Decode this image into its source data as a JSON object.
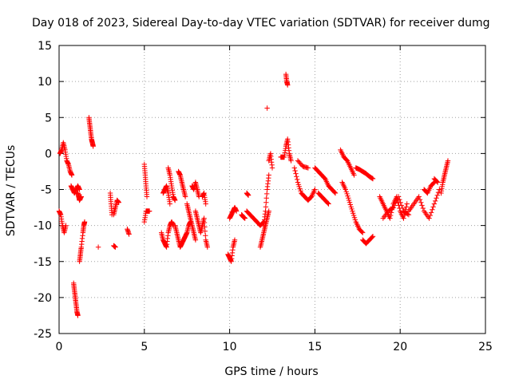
{
  "chart_data": {
    "type": "scatter",
    "title": "Day 018 of 2023, Sidereal Day-to-day VTEC variation (SDTVAR) for receiver dumg",
    "xlabel": "GPS time / hours",
    "ylabel": "SDTVAR / TECUs",
    "xlim": [
      0,
      25
    ],
    "ylim": [
      -25,
      15
    ],
    "xticks": [
      0,
      5,
      10,
      15,
      20,
      25
    ],
    "yticks": [
      15,
      10,
      5,
      0,
      -5,
      -10,
      -15,
      -20,
      -25
    ],
    "grid": true,
    "marker": "+",
    "color": "#ff0000",
    "segments": [
      {
        "x": [
          0.0,
          0.1,
          0.2,
          0.3,
          0.4
        ],
        "y": [
          -8,
          -8.5,
          -10,
          -11,
          -10
        ]
      },
      {
        "x": [
          0.05,
          0.15,
          0.25,
          0.35,
          0.45,
          0.55,
          0.65,
          0.75
        ],
        "y": [
          0,
          0.5,
          1.5,
          0.5,
          -1,
          -1.5,
          -2.5,
          -3
        ]
      },
      {
        "x": [
          0.7,
          0.8,
          0.9,
          1.0,
          1.1,
          1.2
        ],
        "y": [
          -4.5,
          -5,
          -5.5,
          -5,
          -4.5,
          -5
        ]
      },
      {
        "x": [
          0.85,
          0.9,
          0.95,
          1.0,
          1.05,
          1.1
        ],
        "y": [
          -18,
          -19,
          -20,
          -21,
          -22,
          -22.5
        ]
      },
      {
        "x": [
          1.1,
          1.15,
          1.2,
          1.3
        ],
        "y": [
          -5.5,
          -6,
          -6.5,
          -6
        ]
      },
      {
        "x": [
          1.2,
          1.25,
          1.3,
          1.4,
          1.45,
          1.5
        ],
        "y": [
          -15,
          -14,
          -13,
          -11,
          -10,
          -9.5
        ]
      },
      {
        "x": [
          1.75,
          1.8,
          1.85,
          1.9,
          1.95,
          2.0
        ],
        "y": [
          5,
          4,
          3,
          2,
          1.5,
          1
        ]
      },
      {
        "x": [
          2.3
        ],
        "y": [
          -13
        ]
      },
      {
        "x": [
          3.0,
          3.05,
          3.1
        ],
        "y": [
          -5.5,
          -7,
          -8.5
        ]
      },
      {
        "x": [
          3.2,
          3.3
        ],
        "y": [
          -12.8,
          -13
        ]
      },
      {
        "x": [
          3.2,
          3.3,
          3.4,
          3.5
        ],
        "y": [
          -8.5,
          -7.5,
          -6.5,
          -6.8
        ]
      },
      {
        "x": [
          4.0,
          4.1
        ],
        "y": [
          -10.5,
          -11.2
        ]
      },
      {
        "x": [
          5.0,
          5.05,
          5.1,
          5.15
        ],
        "y": [
          -1.5,
          -3,
          -4.5,
          -6
        ]
      },
      {
        "x": [
          5.0,
          5.1,
          5.2,
          5.3
        ],
        "y": [
          -9.5,
          -8,
          -8,
          -8
        ]
      },
      {
        "x": [
          6.0,
          6.1,
          6.2,
          6.3,
          6.4,
          6.5,
          6.6,
          6.7
        ],
        "y": [
          -11,
          -12,
          -12.5,
          -13,
          -11,
          -10,
          -9.5,
          -10
        ]
      },
      {
        "x": [
          6.1,
          6.2,
          6.3,
          6.4,
          6.5
        ],
        "y": [
          -5.5,
          -5,
          -4.5,
          -5.5,
          -7
        ]
      },
      {
        "x": [
          6.4,
          6.5,
          6.6,
          6.7,
          6.8
        ],
        "y": [
          -2,
          -3,
          -4.5,
          -6,
          -6.5
        ]
      },
      {
        "x": [
          6.8,
          6.9,
          7.0,
          7.1,
          7.2,
          7.3,
          7.4,
          7.5,
          7.6,
          7.7
        ],
        "y": [
          -10,
          -11,
          -12,
          -13,
          -12.5,
          -12,
          -11.5,
          -11,
          -10,
          -9.5
        ]
      },
      {
        "x": [
          7.0,
          7.1,
          7.2,
          7.3,
          7.4
        ],
        "y": [
          -2.5,
          -3,
          -4,
          -5,
          -6
        ]
      },
      {
        "x": [
          7.5,
          7.6,
          7.7,
          7.8,
          7.9,
          8.0
        ],
        "y": [
          -7,
          -8,
          -9,
          -10,
          -11,
          -12
        ]
      },
      {
        "x": [
          7.8,
          7.9,
          8.0,
          8.1,
          8.2
        ],
        "y": [
          -4.5,
          -5,
          -4,
          -5,
          -6
        ]
      },
      {
        "x": [
          8.0,
          8.1,
          8.2,
          8.3,
          8.4,
          8.5,
          8.6,
          8.7
        ],
        "y": [
          -8,
          -9,
          -10,
          -11,
          -10,
          -9,
          -12,
          -13
        ]
      },
      {
        "x": [
          8.4,
          8.5,
          8.6
        ],
        "y": [
          -6,
          -5.5,
          -7
        ]
      },
      {
        "x": [
          9.9,
          10.0,
          10.1,
          10.2,
          10.3
        ],
        "y": [
          -14,
          -14.5,
          -15,
          -13,
          -12
        ]
      },
      {
        "x": [
          10.0,
          10.1,
          10.2,
          10.3,
          10.4
        ],
        "y": [
          -9,
          -8.5,
          -8,
          -7.5,
          -8
        ]
      },
      {
        "x": [
          10.7,
          10.8,
          10.9
        ],
        "y": [
          -8.5,
          -8.8,
          -9
        ]
      },
      {
        "x": [
          11.0,
          11.1
        ],
        "y": [
          -5.5,
          -5.8
        ]
      },
      {
        "x": [
          11.0,
          11.2,
          11.4,
          11.6,
          11.8,
          12.0
        ],
        "y": [
          -8,
          -8.5,
          -9,
          -9.5,
          -10,
          -9.5
        ]
      },
      {
        "x": [
          11.8,
          11.9,
          12.0,
          12.1,
          12.2,
          12.3
        ],
        "y": [
          -13,
          -12,
          -11,
          -10,
          -9,
          -8
        ]
      },
      {
        "x": [
          12.0,
          12.1,
          12.2,
          12.3
        ],
        "y": [
          -10,
          -8,
          -5,
          -3
        ]
      },
      {
        "x": [
          12.3,
          12.4,
          12.5
        ],
        "y": [
          -1,
          0,
          -2
        ]
      },
      {
        "x": [
          12.2
        ],
        "y": [
          6.3
        ]
      },
      {
        "x": [
          13.0,
          13.1,
          13.2,
          13.3,
          13.4,
          13.5,
          13.6
        ],
        "y": [
          -0.5,
          -0.5,
          -0.5,
          1,
          2,
          0,
          -1
        ]
      },
      {
        "x": [
          13.3,
          13.35,
          13.4
        ],
        "y": [
          11,
          10,
          9.5
        ]
      },
      {
        "x": [
          13.8,
          14.0,
          14.2,
          14.4,
          14.6,
          14.8,
          15.0
        ],
        "y": [
          -2,
          -4,
          -5.5,
          -6,
          -6.5,
          -6,
          -5
        ]
      },
      {
        "x": [
          14.0,
          14.3,
          14.6
        ],
        "y": [
          -1,
          -1.8,
          -2
        ]
      },
      {
        "x": [
          15.0,
          15.2,
          15.4,
          15.6,
          15.8,
          16.0,
          16.2
        ],
        "y": [
          -2,
          -2.5,
          -3,
          -3.5,
          -4.5,
          -5,
          -5.5
        ]
      },
      {
        "x": [
          15.2,
          15.4,
          15.6,
          15.8
        ],
        "y": [
          -5.5,
          -6,
          -6.5,
          -7
        ]
      },
      {
        "x": [
          16.5,
          16.7,
          16.9,
          17.1,
          17.3
        ],
        "y": [
          0.5,
          -0.5,
          -1,
          -2,
          -3
        ]
      },
      {
        "x": [
          16.6,
          16.8,
          17.0,
          17.2,
          17.4,
          17.6,
          17.8
        ],
        "y": [
          -4,
          -5,
          -6.5,
          -8,
          -9.5,
          -10.5,
          -11
        ]
      },
      {
        "x": [
          17.4,
          17.6,
          17.8,
          18.0,
          18.2,
          18.4
        ],
        "y": [
          -2,
          -2.2,
          -2.5,
          -2.8,
          -3.2,
          -3.5
        ]
      },
      {
        "x": [
          17.8,
          18.0,
          18.2,
          18.4
        ],
        "y": [
          -12,
          -12.5,
          -12,
          -11.5
        ]
      },
      {
        "x": [
          18.8,
          19.0,
          19.2,
          19.4,
          19.6,
          19.8,
          20.0,
          20.2,
          20.4
        ],
        "y": [
          -6,
          -7,
          -8,
          -9,
          -7,
          -6,
          -8,
          -9,
          -7
        ]
      },
      {
        "x": [
          19.0,
          19.3,
          19.6,
          19.9,
          20.2,
          20.5
        ],
        "y": [
          -9,
          -8,
          -7.5,
          -6,
          -8,
          -8.5
        ]
      },
      {
        "x": [
          20.5,
          20.8,
          21.1,
          21.4,
          21.7,
          22.0,
          22.3
        ],
        "y": [
          -8,
          -7,
          -6,
          -8,
          -9,
          -7,
          -5
        ]
      },
      {
        "x": [
          21.4,
          21.6,
          21.8,
          22.0
        ],
        "y": [
          -5,
          -5.5,
          -4.5,
          -4
        ]
      },
      {
        "x": [
          22.0,
          22.2
        ],
        "y": [
          -3.5,
          -4
        ]
      },
      {
        "x": [
          22.4,
          22.5,
          22.6,
          22.7,
          22.8
        ],
        "y": [
          -5.5,
          -4,
          -3,
          -2,
          -1
        ]
      }
    ]
  }
}
